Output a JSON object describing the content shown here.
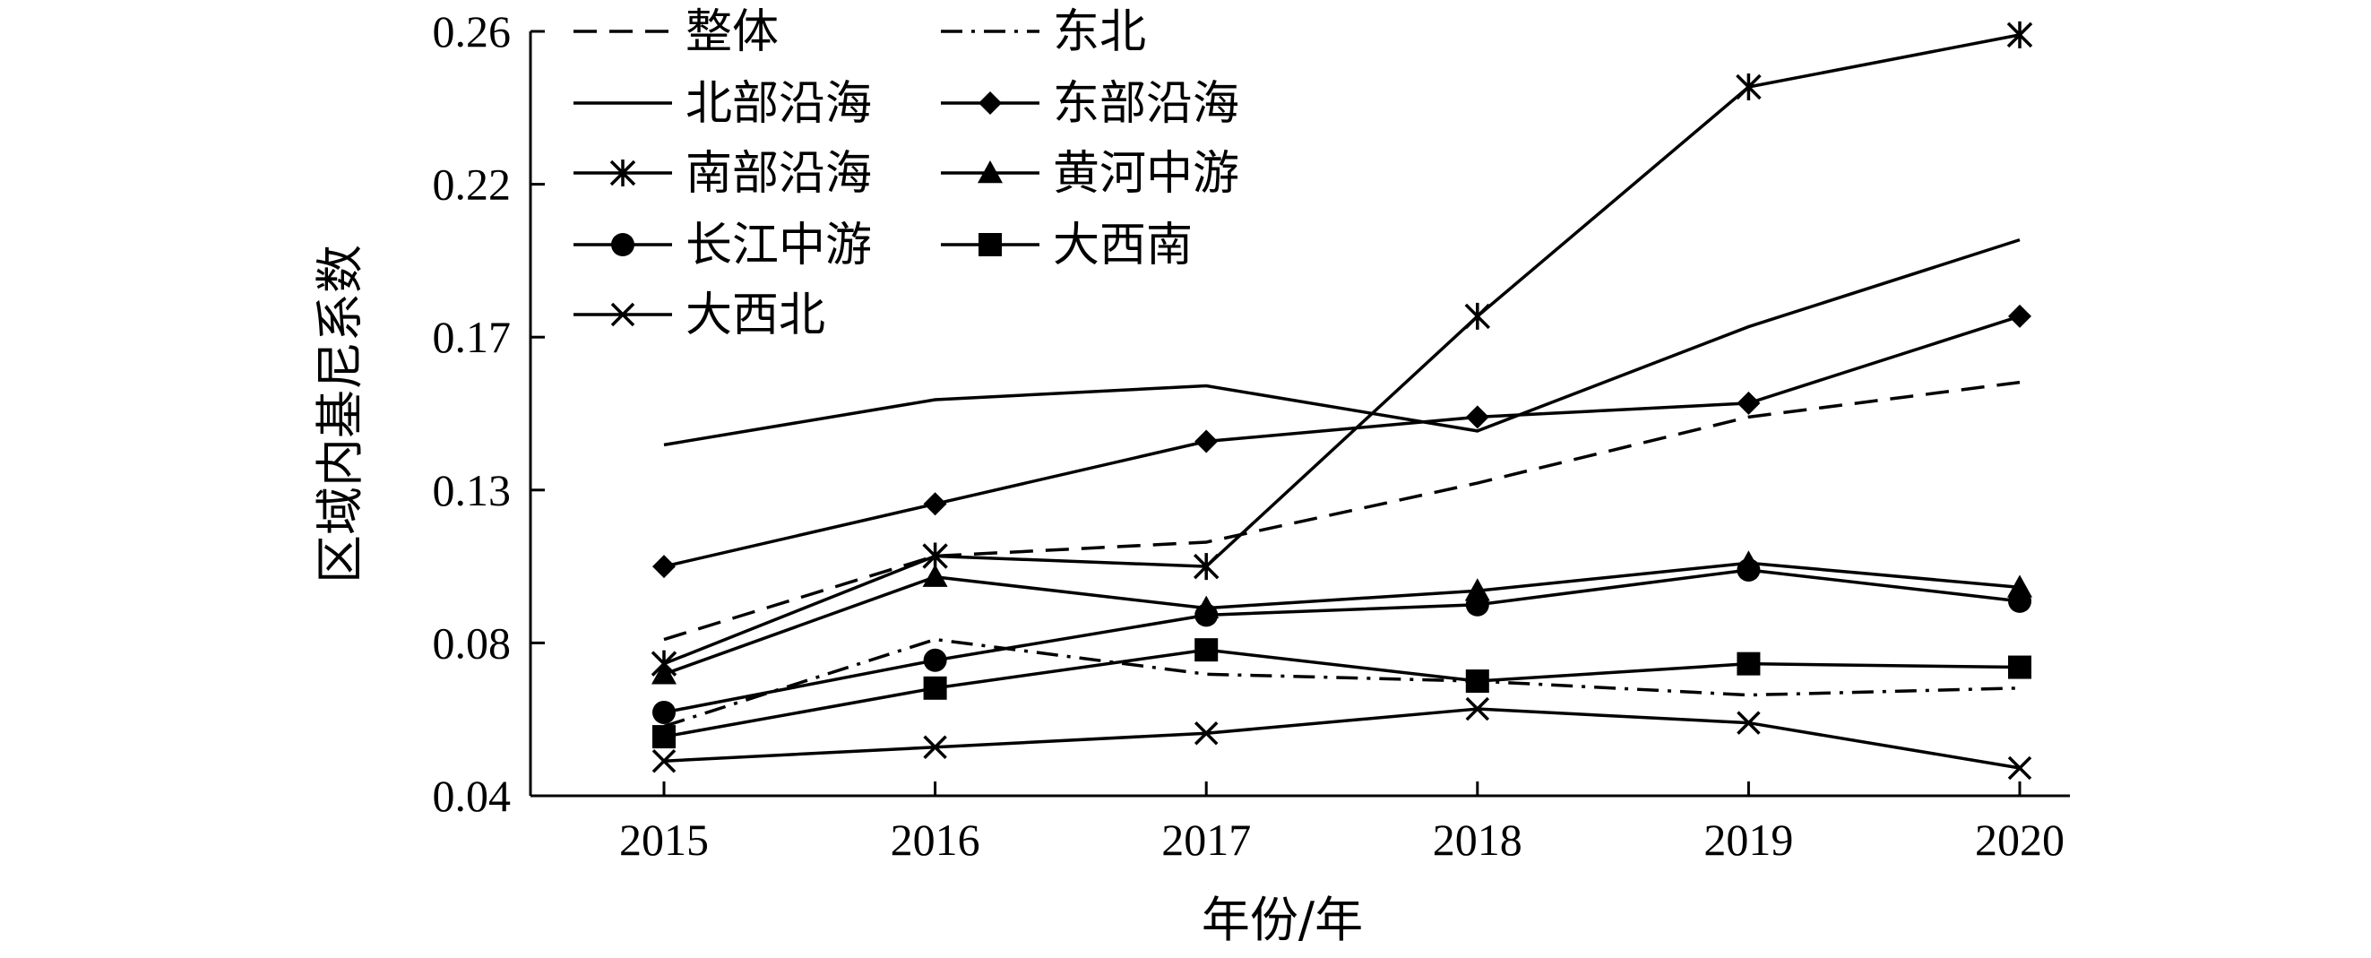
{
  "chart_data": {
    "type": "line",
    "title": "",
    "xlabel": "年份/年",
    "ylabel": "区域内基尼系数",
    "x": [
      "2015",
      "2016",
      "2017",
      "2018",
      "2019",
      "2020"
    ],
    "yticks": [
      "0.04",
      "0.08",
      "0.13",
      "0.17",
      "0.22",
      "0.26"
    ],
    "ylim": [
      0.04,
      0.26
    ],
    "grid": false,
    "legend_position": "top-left",
    "series": [
      {
        "name": "整体",
        "style": "dashed",
        "marker": "none",
        "values": [
          0.085,
          0.109,
          0.113,
          0.13,
          0.149,
          0.159
        ]
      },
      {
        "name": "东北",
        "style": "dashdot",
        "marker": "none",
        "values": [
          0.06,
          0.085,
          0.075,
          0.073,
          0.069,
          0.071
        ]
      },
      {
        "name": "北部沿海",
        "style": "solid",
        "marker": "none",
        "values": [
          0.141,
          0.154,
          0.158,
          0.145,
          0.175,
          0.2
        ]
      },
      {
        "name": "东部沿海",
        "style": "solid",
        "marker": "diamond",
        "values": [
          0.106,
          0.124,
          0.142,
          0.149,
          0.153,
          0.178
        ]
      },
      {
        "name": "南部沿海",
        "style": "solid",
        "marker": "asterisk",
        "values": [
          0.078,
          0.109,
          0.106,
          0.178,
          0.244,
          0.259
        ]
      },
      {
        "name": "黄河中游",
        "style": "solid",
        "marker": "triangle",
        "values": [
          0.075,
          0.103,
          0.094,
          0.099,
          0.107,
          0.1
        ]
      },
      {
        "name": "长江中游",
        "style": "solid",
        "marker": "circle",
        "values": [
          0.064,
          0.079,
          0.092,
          0.095,
          0.105,
          0.096
        ]
      },
      {
        "name": "大西南",
        "style": "solid",
        "marker": "square",
        "values": [
          0.057,
          0.071,
          0.082,
          0.073,
          0.078,
          0.077
        ]
      },
      {
        "name": "大西北",
        "style": "solid",
        "marker": "x",
        "values": [
          0.05,
          0.054,
          0.058,
          0.065,
          0.061,
          0.048
        ]
      }
    ]
  }
}
